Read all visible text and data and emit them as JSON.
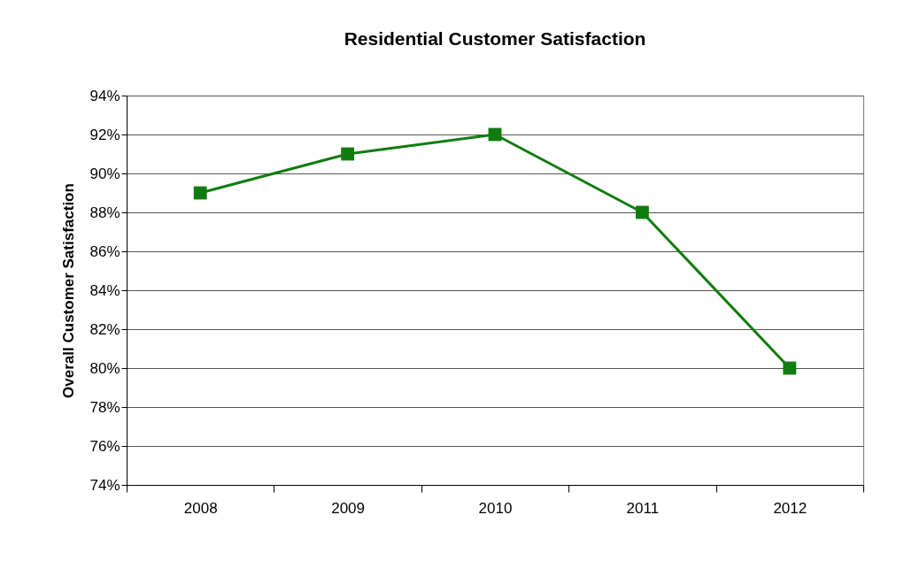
{
  "chart_data": {
    "type": "line",
    "title": "Residential Customer Satisfaction",
    "ylabel": "Overall Customer Satisfaction",
    "categories": [
      "2008",
      "2009",
      "2010",
      "2011",
      "2012"
    ],
    "series": [
      {
        "color": "#107c10",
        "values": [
          89,
          91,
          92,
          88,
          80
        ]
      }
    ],
    "ylim": [
      74,
      94
    ],
    "yticks": [
      {
        "value": 74,
        "label": "74%"
      },
      {
        "value": 76,
        "label": "76%"
      },
      {
        "value": 78,
        "label": "78%"
      },
      {
        "value": 80,
        "label": "80%"
      },
      {
        "value": 82,
        "label": "82%"
      },
      {
        "value": 84,
        "label": "84%"
      },
      {
        "value": 86,
        "label": "86%"
      },
      {
        "value": 88,
        "label": "88%"
      },
      {
        "value": 90,
        "label": "90%"
      },
      {
        "value": 92,
        "label": "92%"
      },
      {
        "value": 94,
        "label": "94%"
      }
    ],
    "grid": "y",
    "marker": "square",
    "line_style": "solid"
  }
}
